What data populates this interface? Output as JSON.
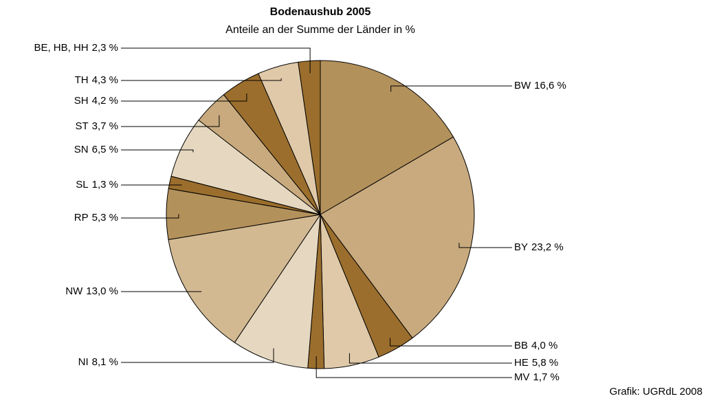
{
  "chart_data": {
    "type": "pie",
    "title": "Bodenaushub 2005",
    "subtitle": "Anteile an der Summe der Länder in %",
    "source": "Grafik: UGRdL 2008",
    "categories": [
      "BW",
      "BY",
      "BB",
      "HE",
      "MV",
      "NI",
      "NW",
      "RP",
      "SL",
      "SN",
      "ST",
      "SH",
      "TH",
      "BE, HB, HH"
    ],
    "values": [
      16.6,
      23.2,
      4.0,
      5.8,
      1.7,
      8.1,
      13.0,
      5.3,
      1.3,
      6.5,
      3.7,
      4.2,
      4.3,
      2.3
    ],
    "value_labels": [
      "16,6 %",
      "23,2 %",
      "4,0 %",
      "5,8 %",
      "1,7 %",
      "8,1 %",
      "13,0 %",
      "5,3 %",
      "1,3 %",
      "6,5 %",
      "3,7 %",
      "4,2 %",
      "4,3 %",
      "2,3 %"
    ],
    "colors": [
      "#b3915b",
      "#c8aa7e",
      "#9b6e2d",
      "#dfc9a8",
      "#9b6e2d",
      "#e6d8c0",
      "#d2b992",
      "#b3915b",
      "#9b6e2d",
      "#e6d8c0",
      "#c8aa7e",
      "#9b6e2d",
      "#dfc9a8",
      "#9b6e2d"
    ]
  }
}
